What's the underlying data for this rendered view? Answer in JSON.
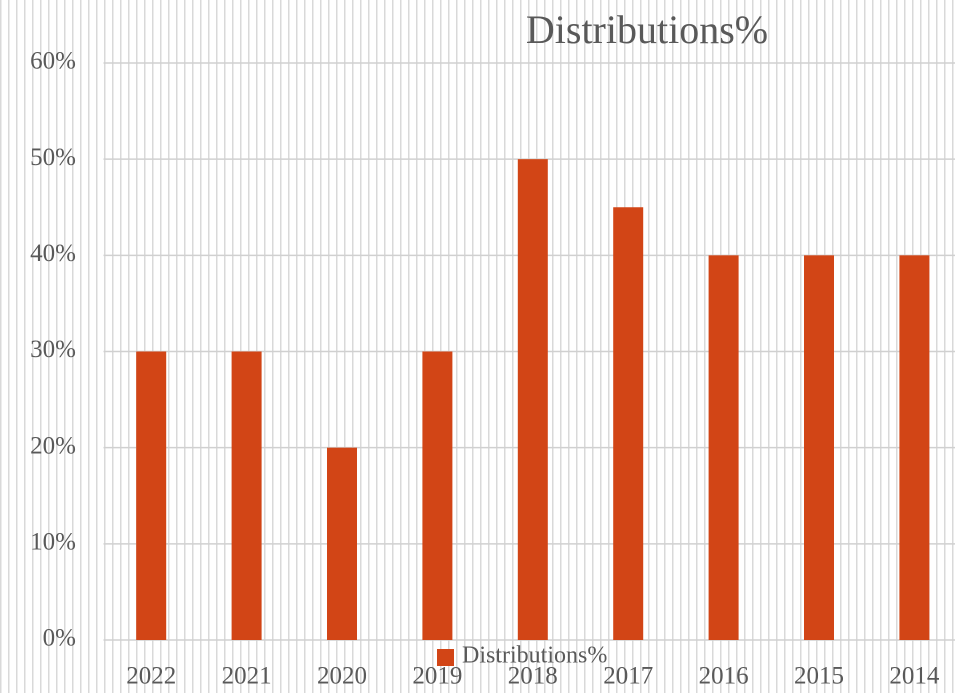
{
  "chart_data": {
    "type": "bar",
    "title": "Distributions%",
    "categories": [
      "2022",
      "2021",
      "2020",
      "2019",
      "2018",
      "2017",
      "2016",
      "2015",
      "2014"
    ],
    "series": [
      {
        "name": "Distributions%",
        "color": "#d24516",
        "values": [
          30,
          30,
          20,
          30,
          50,
          45,
          40,
          40,
          40
        ]
      }
    ],
    "ylim": [
      0,
      60
    ],
    "yticks": [
      {
        "value": 0,
        "label": "0%"
      },
      {
        "value": 10,
        "label": "10%"
      },
      {
        "value": 20,
        "label": "20%"
      },
      {
        "value": 30,
        "label": "30%"
      },
      {
        "value": 40,
        "label": "40%"
      },
      {
        "value": 50,
        "label": "50%"
      },
      {
        "value": 60,
        "label": "60%"
      }
    ],
    "grid": true,
    "legend": "bottom"
  }
}
